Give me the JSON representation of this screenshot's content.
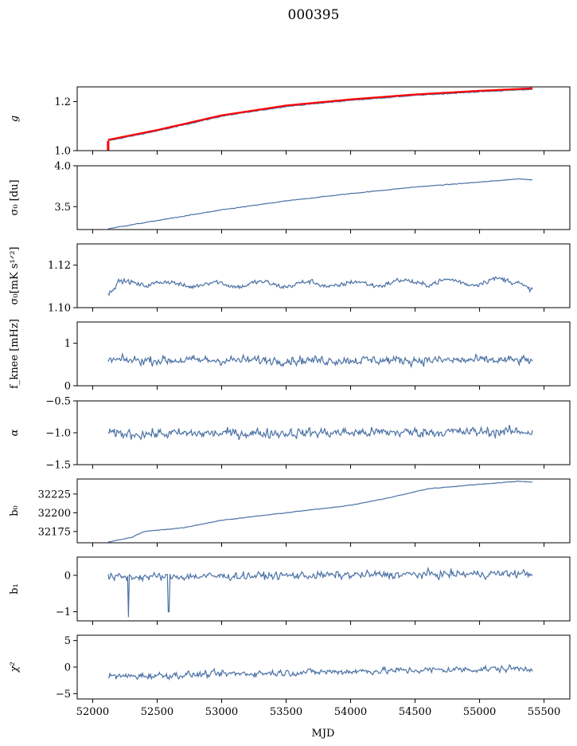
{
  "title": "000395",
  "chart_data": {
    "type": "line",
    "xlabel": "MJD",
    "xlim": [
      51880,
      55700
    ],
    "xticks": [
      52000,
      52500,
      53000,
      53500,
      54000,
      54500,
      55000,
      55500
    ],
    "x_start": 52120,
    "x_end": 55410,
    "colors": {
      "series": "#4c72a5",
      "fit": "#ff0000"
    },
    "panels": [
      {
        "ylabel_html": "g",
        "ylim": [
          1.0,
          1.26
        ],
        "yticks": [
          1.0,
          1.2
        ],
        "ytick_labels": [
          "1.0",
          "1.2"
        ],
        "curve": "g",
        "trend": [
          [
            52120,
            1.04
          ],
          [
            52500,
            1.08
          ],
          [
            53000,
            1.14
          ],
          [
            53500,
            1.18
          ],
          [
            54000,
            1.205
          ],
          [
            54500,
            1.225
          ],
          [
            55000,
            1.24
          ],
          [
            55410,
            1.25
          ]
        ],
        "noise": 0.002,
        "has_red_overlay": true
      },
      {
        "ylabel_html": "σ₀ [du]",
        "ylim": [
          3.22,
          4.0
        ],
        "yticks": [
          3.5,
          4.0
        ],
        "ytick_labels": [
          "3.5",
          "4.0"
        ],
        "trend": [
          [
            52120,
            3.23
          ],
          [
            52500,
            3.33
          ],
          [
            53000,
            3.46
          ],
          [
            53500,
            3.57
          ],
          [
            54000,
            3.66
          ],
          [
            54500,
            3.74
          ],
          [
            55000,
            3.8
          ],
          [
            55300,
            3.84
          ],
          [
            55410,
            3.83
          ]
        ],
        "noise": 0.004
      },
      {
        "ylabel_html": "σ₀[mK s¹ᐟ²]",
        "ylim": [
          1.1,
          1.13
        ],
        "yticks": [
          1.1,
          1.12
        ],
        "ytick_labels": [
          "1.10",
          "1.12"
        ],
        "trend": [
          [
            52120,
            1.106
          ],
          [
            52200,
            1.111
          ],
          [
            52300,
            1.112
          ],
          [
            52600,
            1.111
          ],
          [
            53000,
            1.111
          ],
          [
            53500,
            1.111
          ],
          [
            54000,
            1.111
          ],
          [
            54500,
            1.112
          ],
          [
            55000,
            1.112
          ],
          [
            55300,
            1.113
          ],
          [
            55410,
            1.108
          ]
        ],
        "noise": 0.0012,
        "wave": 0.0012
      },
      {
        "ylabel_html": "f_knee [mHz]",
        "ylim": [
          0,
          1.5
        ],
        "yticks": [
          0,
          1
        ],
        "ytick_labels": [
          "0",
          "1"
        ],
        "trend": [
          [
            52120,
            0.6
          ],
          [
            55410,
            0.6
          ]
        ],
        "noise": 0.11
      },
      {
        "ylabel_html": "α",
        "ylim": [
          -1.5,
          -0.5
        ],
        "yticks": [
          -1.5,
          -1.0,
          -0.5
        ],
        "ytick_labels": [
          "−1.5",
          "−1.0",
          "−0.5"
        ],
        "trend": [
          [
            52120,
            -1.02
          ],
          [
            55410,
            -0.98
          ]
        ],
        "noise": 0.08
      },
      {
        "ylabel_html": "b₀",
        "ylim": [
          32160,
          32245
        ],
        "yticks": [
          32175,
          32200,
          32225
        ],
        "ytick_labels": [
          "32175",
          "32200",
          "32225"
        ],
        "trend": [
          [
            52120,
            32161
          ],
          [
            52300,
            32167
          ],
          [
            52400,
            32175
          ],
          [
            52700,
            32180
          ],
          [
            53000,
            32190
          ],
          [
            53500,
            32200
          ],
          [
            54000,
            32210
          ],
          [
            54300,
            32220
          ],
          [
            54600,
            32232
          ],
          [
            55000,
            32238
          ],
          [
            55300,
            32242
          ],
          [
            55410,
            32241
          ]
        ],
        "noise": 0.4
      },
      {
        "ylabel_html": "b₁",
        "ylim": [
          -1.25,
          0.5
        ],
        "yticks": [
          -1,
          0
        ],
        "ytick_labels": [
          "−1",
          "0"
        ],
        "trend": [
          [
            52120,
            -0.05
          ],
          [
            55410,
            0.05
          ]
        ],
        "noise": 0.11,
        "spikes": [
          [
            52280,
            -1.15
          ],
          [
            52590,
            -1.0
          ]
        ]
      },
      {
        "ylabel_html": "χ²",
        "ylim": [
          -6,
          6
        ],
        "yticks": [
          -5,
          0,
          5
        ],
        "ytick_labels": [
          "−5",
          "0",
          "5"
        ],
        "trend": [
          [
            52120,
            -1.8
          ],
          [
            53000,
            -1.3
          ],
          [
            54000,
            -0.8
          ],
          [
            55000,
            -0.4
          ],
          [
            55410,
            -0.2
          ]
        ],
        "noise": 0.65
      }
    ]
  }
}
